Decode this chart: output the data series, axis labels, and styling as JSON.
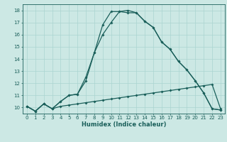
{
  "title": "",
  "xlabel": "Humidex (Indice chaleur)",
  "bg_color": "#cce8e4",
  "grid_color": "#aad4d0",
  "line_color": "#1a5f5a",
  "xlim": [
    -0.5,
    23.5
  ],
  "ylim": [
    9.5,
    18.5
  ],
  "yticks": [
    10,
    11,
    12,
    13,
    14,
    15,
    16,
    17,
    18
  ],
  "xticks": [
    0,
    1,
    2,
    3,
    4,
    5,
    6,
    7,
    8,
    9,
    10,
    11,
    12,
    13,
    14,
    15,
    16,
    17,
    18,
    19,
    20,
    21,
    22,
    23
  ],
  "line1_x": [
    0,
    1,
    2,
    3,
    4,
    5,
    6,
    7,
    8,
    9,
    10,
    11,
    12,
    13,
    14,
    15,
    16,
    17,
    18,
    19,
    20,
    21,
    22,
    23
  ],
  "line1_y": [
    10.1,
    9.7,
    10.3,
    9.9,
    10.1,
    10.2,
    10.3,
    10.4,
    10.5,
    10.6,
    10.7,
    10.8,
    10.9,
    11.0,
    11.1,
    11.2,
    11.3,
    11.4,
    11.5,
    11.6,
    11.7,
    11.8,
    11.9,
    9.9
  ],
  "line2_x": [
    0,
    1,
    2,
    3,
    4,
    5,
    6,
    7,
    8,
    9,
    10,
    11,
    12,
    13,
    14,
    15,
    16,
    17,
    18,
    19,
    20,
    21,
    22,
    23
  ],
  "line2_y": [
    10.1,
    9.7,
    10.3,
    9.9,
    10.5,
    11.0,
    11.1,
    12.2,
    14.5,
    16.0,
    17.0,
    17.9,
    17.8,
    17.8,
    17.1,
    16.6,
    15.4,
    14.8,
    13.8,
    13.1,
    12.2,
    11.2,
    9.9,
    9.8
  ],
  "line3_x": [
    0,
    1,
    2,
    3,
    4,
    5,
    6,
    7,
    8,
    9,
    10,
    11,
    12,
    13,
    14,
    15,
    16,
    17,
    18,
    19,
    20,
    21,
    22,
    23
  ],
  "line3_y": [
    10.1,
    9.7,
    10.3,
    9.9,
    10.5,
    11.0,
    11.1,
    12.5,
    14.5,
    16.8,
    17.9,
    17.9,
    18.0,
    17.8,
    17.1,
    16.6,
    15.4,
    14.8,
    13.8,
    13.1,
    12.2,
    11.2,
    9.9,
    9.8
  ]
}
